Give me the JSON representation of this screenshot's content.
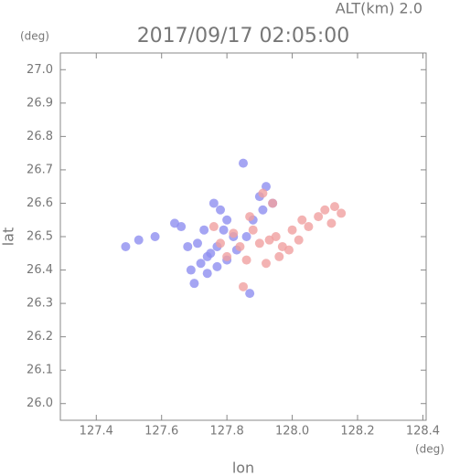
{
  "chart_data": {
    "type": "scatter",
    "title": "2017/09/17 02:05:00",
    "altitude_label": "ALT(km) 2.0",
    "y_unit": "(deg)",
    "x_unit": "(deg)",
    "ylabel": "lat",
    "xlabel": "lon",
    "xlim": [
      127.29,
      128.41
    ],
    "ylim": [
      25.95,
      27.05
    ],
    "xticks": [
      {
        "value": 127.4,
        "label": "127.4"
      },
      {
        "value": 127.6,
        "label": "127.6"
      },
      {
        "value": 127.8,
        "label": "127.8"
      },
      {
        "value": 128.0,
        "label": "128.0"
      },
      {
        "value": 128.2,
        "label": "128.2"
      },
      {
        "value": 128.4,
        "label": "128.4"
      }
    ],
    "yticks": [
      {
        "value": 26.0,
        "label": "26.0"
      },
      {
        "value": 26.1,
        "label": "26.1"
      },
      {
        "value": 26.2,
        "label": "26.2"
      },
      {
        "value": 26.3,
        "label": "26.3"
      },
      {
        "value": 26.4,
        "label": "26.4"
      },
      {
        "value": 26.5,
        "label": "26.5"
      },
      {
        "value": 26.6,
        "label": "26.6"
      },
      {
        "value": 26.7,
        "label": "26.7"
      },
      {
        "value": 26.8,
        "label": "26.8"
      },
      {
        "value": 26.9,
        "label": "26.9"
      },
      {
        "value": 27.0,
        "label": "27.0"
      }
    ],
    "series": [
      {
        "color": "#8f8ff0",
        "x": [
          127.64,
          127.66,
          127.58,
          127.53,
          127.69,
          127.72,
          127.74,
          127.75,
          127.77,
          127.79,
          127.8,
          127.82,
          127.78,
          127.76,
          127.73,
          127.71,
          127.74,
          127.77,
          127.8,
          127.83,
          127.86,
          127.88,
          127.9,
          127.92,
          127.91,
          127.94,
          127.85,
          127.68,
          127.7,
          127.87,
          127.49
        ],
        "values": [
          26.54,
          26.53,
          26.5,
          26.49,
          26.4,
          26.42,
          26.39,
          26.45,
          26.47,
          26.52,
          26.55,
          26.5,
          26.58,
          26.6,
          26.52,
          26.48,
          26.44,
          26.41,
          26.43,
          26.46,
          26.5,
          26.55,
          26.62,
          26.65,
          26.58,
          26.6,
          26.72,
          26.47,
          26.36,
          26.33,
          26.47
        ]
      },
      {
        "color": "#f0a0a0",
        "x": [
          127.78,
          127.82,
          127.84,
          127.86,
          127.88,
          127.9,
          127.93,
          127.95,
          127.97,
          128.0,
          128.03,
          128.05,
          128.08,
          128.1,
          128.12,
          128.15,
          127.92,
          127.96,
          127.99,
          127.91,
          127.87,
          127.8,
          127.76,
          127.85,
          128.02,
          127.94,
          128.13
        ],
        "values": [
          26.48,
          26.51,
          26.47,
          26.43,
          26.52,
          26.48,
          26.49,
          26.5,
          26.47,
          26.52,
          26.55,
          26.53,
          26.56,
          26.58,
          26.54,
          26.57,
          26.42,
          26.44,
          26.46,
          26.63,
          26.56,
          26.44,
          26.53,
          26.35,
          26.49,
          26.6,
          26.59
        ]
      }
    ]
  }
}
